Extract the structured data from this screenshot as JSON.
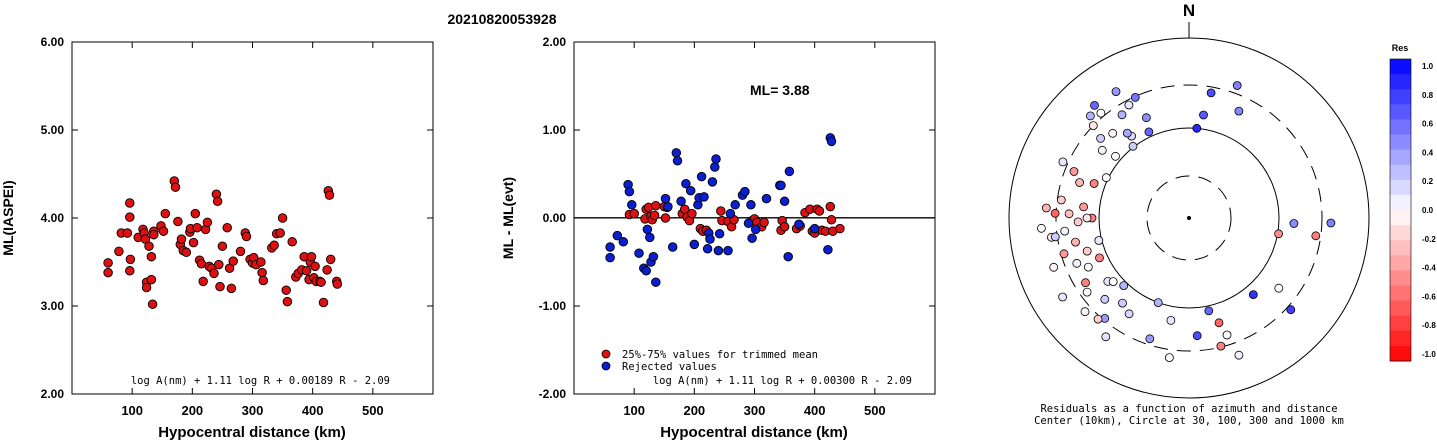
{
  "title": "20210820053928",
  "colors": {
    "accepted": "#dd1111",
    "rejected": "#0a1fd0",
    "axis": "#000000"
  },
  "chart_data": [
    {
      "type": "scatter",
      "id": "ml-vs-distance",
      "xlabel": "Hypocentral distance (km)",
      "ylabel": "ML(IASPEI)",
      "xlim": [
        0,
        600
      ],
      "ylim": [
        2.0,
        6.0
      ],
      "xticks": [
        100,
        200,
        300,
        400,
        500
      ],
      "yticks": [
        "2.00",
        "3.00",
        "4.00",
        "5.00",
        "6.00"
      ],
      "formula": "log A(nm) + 1.11 log R + 0.00189 R - 2.09",
      "series": [
        {
          "color": "#dd1111",
          "points": [
            [
              60,
              3.49
            ],
            [
              60,
              3.38
            ],
            [
              78,
              3.62
            ],
            [
              82,
              3.83
            ],
            [
              92,
              3.83
            ],
            [
              96,
              4.17
            ],
            [
              96,
              4.01
            ],
            [
              96,
              3.4
            ],
            [
              97,
              3.53
            ],
            [
              110,
              3.78
            ],
            [
              118,
              3.87
            ],
            [
              120,
              3.83
            ],
            [
              122,
              3.76
            ],
            [
              124,
              3.27
            ],
            [
              124,
              3.21
            ],
            [
              128,
              3.68
            ],
            [
              132,
              3.3
            ],
            [
              132,
              3.56
            ],
            [
              134,
              3.02
            ],
            [
              136,
              3.85
            ],
            [
              136,
              3.81
            ],
            [
              148,
              3.91
            ],
            [
              152,
              3.85
            ],
            [
              155,
              4.05
            ],
            [
              170,
              4.42
            ],
            [
              172,
              4.35
            ],
            [
              176,
              3.96
            ],
            [
              180,
              3.7
            ],
            [
              182,
              3.76
            ],
            [
              185,
              3.63
            ],
            [
              190,
              3.61
            ],
            [
              196,
              3.84
            ],
            [
              197,
              3.88
            ],
            [
              202,
              3.72
            ],
            [
              205,
              4.05
            ],
            [
              208,
              3.89
            ],
            [
              212,
              3.52
            ],
            [
              215,
              3.48
            ],
            [
              218,
              3.28
            ],
            [
              222,
              3.87
            ],
            [
              225,
              3.95
            ],
            [
              228,
              3.45
            ],
            [
              232,
              3.43
            ],
            [
              236,
              3.37
            ],
            [
              240,
              4.27
            ],
            [
              242,
              4.19
            ],
            [
              244,
              3.47
            ],
            [
              246,
              3.22
            ],
            [
              250,
              3.68
            ],
            [
              258,
              3.89
            ],
            [
              262,
              3.43
            ],
            [
              265,
              3.2
            ],
            [
              268,
              3.51
            ],
            [
              280,
              3.62
            ],
            [
              288,
              3.83
            ],
            [
              290,
              3.79
            ],
            [
              296,
              3.53
            ],
            [
              300,
              3.49
            ],
            [
              302,
              3.55
            ],
            [
              306,
              3.47
            ],
            [
              314,
              3.5
            ],
            [
              316,
              3.38
            ],
            [
              318,
              3.29
            ],
            [
              332,
              3.66
            ],
            [
              336,
              3.69
            ],
            [
              340,
              3.82
            ],
            [
              346,
              3.83
            ],
            [
              350,
              4.0
            ],
            [
              356,
              3.18
            ],
            [
              358,
              3.05
            ],
            [
              366,
              3.73
            ],
            [
              372,
              3.33
            ],
            [
              376,
              3.37
            ],
            [
              382,
              3.41
            ],
            [
              386,
              3.56
            ],
            [
              390,
              3.4
            ],
            [
              394,
              3.3
            ],
            [
              396,
              3.5
            ],
            [
              398,
              3.56
            ],
            [
              402,
              3.32
            ],
            [
              404,
              3.45
            ],
            [
              406,
              3.28
            ],
            [
              412,
              3.28
            ],
            [
              414,
              3.27
            ],
            [
              418,
              3.04
            ],
            [
              424,
              3.41
            ],
            [
              426,
              4.31
            ],
            [
              428,
              4.26
            ],
            [
              430,
              3.53
            ],
            [
              440,
              3.28
            ],
            [
              441,
              3.25
            ]
          ]
        }
      ]
    },
    {
      "type": "scatter",
      "id": "ml-residual-vs-distance",
      "xlabel": "Hypocentral distance (km)",
      "ylabel": "ML - ML(evt)",
      "xlim": [
        0,
        600
      ],
      "ylim": [
        -2.0,
        2.0
      ],
      "xticks": [
        100,
        200,
        300,
        400,
        500
      ],
      "yticks": [
        "-2.00",
        "-1.00",
        "0.00",
        "1.00",
        "2.00"
      ],
      "zero_line": 0,
      "annotation": "ML= 3.88",
      "formula": "log A(nm) + 1.11 log R + 0.00300 R - 2.09",
      "legend": [
        {
          "label": "25%-75% values for trimmed mean",
          "color": "#dd1111"
        },
        {
          "label": "Rejected values",
          "color": "#0a1fd0"
        }
      ],
      "series": [
        {
          "name": "25%-75% values for trimmed mean",
          "color": "#dd1111",
          "points": [
            [
              92,
              0.04
            ],
            [
              100,
              0.05
            ],
            [
              118,
              -0.01
            ],
            [
              120,
              0.1
            ],
            [
              124,
              0.12
            ],
            [
              128,
              0.02
            ],
            [
              130,
              -0.02
            ],
            [
              134,
              0.03
            ],
            [
              136,
              0.14
            ],
            [
              150,
              0.13
            ],
            [
              152,
              0.0
            ],
            [
              155,
              0.12
            ],
            [
              180,
              0.05
            ],
            [
              184,
              0.1
            ],
            [
              188,
              0.01
            ],
            [
              192,
              -0.03
            ],
            [
              196,
              0.05
            ],
            [
              210,
              -0.12
            ],
            [
              214,
              -0.15
            ],
            [
              220,
              -0.14
            ],
            [
              244,
              0.08
            ],
            [
              246,
              -0.03
            ],
            [
              256,
              -0.04
            ],
            [
              262,
              -0.1
            ],
            [
              266,
              -0.02
            ],
            [
              296,
              -0.03
            ],
            [
              300,
              -0.01
            ],
            [
              304,
              -0.05
            ],
            [
              312,
              -0.1
            ],
            [
              316,
              -0.05
            ],
            [
              344,
              -0.14
            ],
            [
              346,
              -0.03
            ],
            [
              350,
              -0.1
            ],
            [
              370,
              -0.12
            ],
            [
              376,
              -0.09
            ],
            [
              384,
              0.06
            ],
            [
              392,
              0.1
            ],
            [
              396,
              -0.15
            ],
            [
              400,
              -0.17
            ],
            [
              404,
              0.1
            ],
            [
              408,
              0.08
            ],
            [
              412,
              -0.14
            ],
            [
              418,
              -0.15
            ],
            [
              426,
              0.13
            ],
            [
              428,
              -0.02
            ],
            [
              430,
              -0.15
            ],
            [
              442,
              -0.12
            ]
          ]
        },
        {
          "name": "Rejected values",
          "color": "#0a1fd0",
          "points": [
            [
              60,
              -0.33
            ],
            [
              60,
              -0.45
            ],
            [
              72,
              -0.2
            ],
            [
              82,
              -0.27
            ],
            [
              90,
              0.38
            ],
            [
              92,
              0.3
            ],
            [
              96,
              0.15
            ],
            [
              108,
              -0.4
            ],
            [
              116,
              -0.57
            ],
            [
              120,
              -0.6
            ],
            [
              122,
              -0.13
            ],
            [
              126,
              -0.22
            ],
            [
              128,
              -0.5
            ],
            [
              132,
              -0.44
            ],
            [
              136,
              -0.73
            ],
            [
              152,
              0.22
            ],
            [
              156,
              0.13
            ],
            [
              164,
              -0.33
            ],
            [
              170,
              0.74
            ],
            [
              172,
              0.65
            ],
            [
              178,
              0.19
            ],
            [
              186,
              0.39
            ],
            [
              194,
              0.31
            ],
            [
              200,
              -0.3
            ],
            [
              206,
              0.15
            ],
            [
              208,
              0.23
            ],
            [
              212,
              0.47
            ],
            [
              216,
              0.24
            ],
            [
              222,
              -0.35
            ],
            [
              224,
              -0.17
            ],
            [
              226,
              -0.24
            ],
            [
              230,
              0.41
            ],
            [
              234,
              0.58
            ],
            [
              236,
              0.67
            ],
            [
              240,
              -0.37
            ],
            [
              242,
              -0.18
            ],
            [
              256,
              -0.37
            ],
            [
              260,
              0.05
            ],
            [
              268,
              0.15
            ],
            [
              280,
              0.26
            ],
            [
              284,
              0.3
            ],
            [
              290,
              -0.06
            ],
            [
              294,
              0.15
            ],
            [
              296,
              -0.23
            ],
            [
              302,
              -0.13
            ],
            [
              320,
              0.22
            ],
            [
              342,
              0.37
            ],
            [
              344,
              0.37
            ],
            [
              350,
              0.19
            ],
            [
              356,
              -0.44
            ],
            [
              358,
              0.53
            ],
            [
              374,
              -0.07
            ],
            [
              400,
              -0.12
            ],
            [
              422,
              -0.36
            ],
            [
              426,
              0.91
            ],
            [
              428,
              0.87
            ]
          ]
        }
      ]
    },
    {
      "type": "scatter",
      "id": "residual-azimuth-distance",
      "north_label": "N",
      "caption_line1": "Residuals as a function of azimuth and distance",
      "caption_line2": "Center (10km), Circle at 30, 100, 300 and 1000 km",
      "legend_title": "Res",
      "colorbar_ticks": [
        "1.0",
        "0.8",
        "0.6",
        "0.4",
        "0.2",
        "0.0",
        "-0.2",
        "-0.4",
        "-0.6",
        "-0.8",
        "-1.0"
      ],
      "stations": [
        [
          5,
          0.85
        ],
        [
          10,
          0.7
        ],
        [
          8,
          0.65
        ],
        [
          20,
          0.5
        ],
        [
          25,
          0.48
        ],
        [
          335,
          0.6
        ],
        [
          336,
          0.55
        ],
        [
          337,
          0.45
        ],
        [
          330,
          0.4
        ],
        [
          327,
          0.3
        ],
        [
          325,
          0.15
        ],
        [
          320,
          0.0
        ],
        [
          318,
          -0.05
        ],
        [
          322,
          0.2
        ],
        [
          332,
          0.1
        ],
        [
          324,
          0.35
        ],
        [
          316,
          0.3
        ],
        [
          312,
          0.2
        ],
        [
          310,
          0.0
        ],
        [
          314,
          -0.1
        ],
        [
          308,
          -0.05
        ],
        [
          320,
          0.6
        ],
        [
          292,
          -0.4
        ],
        [
          290,
          -0.5
        ],
        [
          294,
          0.1
        ],
        [
          288,
          -0.3
        ],
        [
          296,
          0.0
        ],
        [
          278,
          -0.2
        ],
        [
          276,
          -0.4
        ],
        [
          274,
          -0.3
        ],
        [
          272,
          -0.25
        ],
        [
          270,
          -0.5
        ],
        [
          272,
          -0.6
        ],
        [
          268,
          -0.2
        ],
        [
          266,
          0.0
        ],
        [
          264,
          0.05
        ],
        [
          270,
          -0.1
        ],
        [
          262,
          -0.1
        ],
        [
          258,
          -0.3
        ],
        [
          256,
          0.1
        ],
        [
          254,
          -0.4
        ],
        [
          252,
          -0.2
        ],
        [
          250,
          -0.05
        ],
        [
          248,
          0.05
        ],
        [
          246,
          -0.5
        ],
        [
          262,
          0.2
        ],
        [
          244,
          0.0
        ],
        [
          238,
          0.1
        ],
        [
          234,
          0.0
        ],
        [
          232,
          0.1
        ],
        [
          228,
          -0.05
        ],
        [
          226,
          0.2
        ],
        [
          224,
          0.3
        ],
        [
          220,
          0.4
        ],
        [
          218,
          0.2
        ],
        [
          215,
          0.1
        ],
        [
          238,
          -0.5
        ],
        [
          230,
          0.0
        ],
        [
          222,
          -0.2
        ],
        [
          212,
          0.15
        ],
        [
          200,
          0.3
        ],
        [
          198,
          0.4
        ],
        [
          190,
          0.1
        ],
        [
          188,
          0.0
        ],
        [
          176,
          0.7
        ],
        [
          168,
          0.6
        ],
        [
          166,
          -0.5
        ],
        [
          164,
          -0.6
        ],
        [
          160,
          0.05
        ],
        [
          162,
          0.0
        ],
        [
          140,
          0.8
        ],
        [
          132,
          0.75
        ],
        [
          128,
          0.0
        ],
        [
          100,
          -0.45
        ],
        [
          98,
          -0.5
        ],
        [
          93,
          0.45
        ],
        [
          92,
          0.5
        ]
      ]
    }
  ]
}
